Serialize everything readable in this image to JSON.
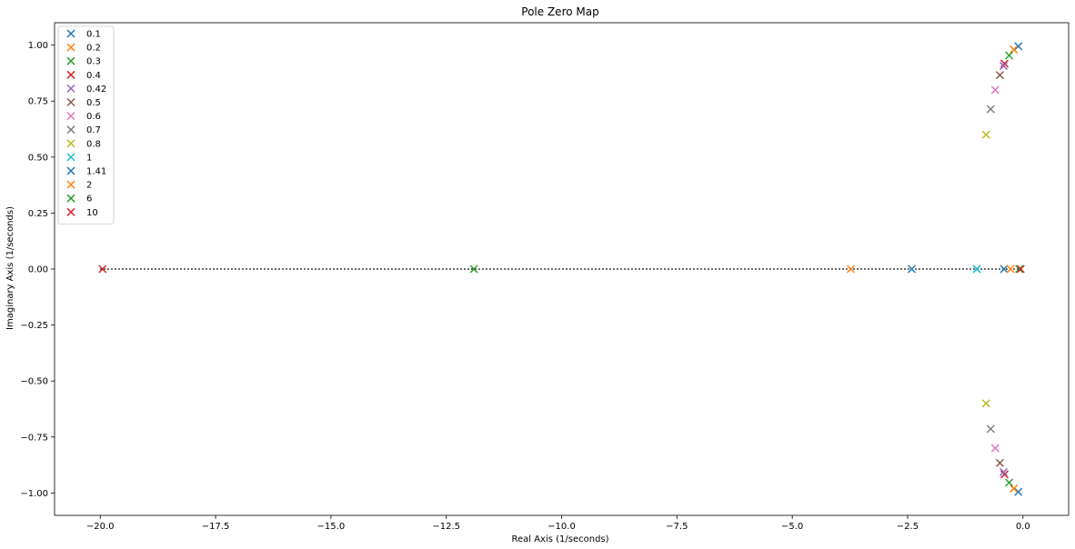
{
  "chart_data": {
    "type": "scatter",
    "title": "Pole Zero Map",
    "xlabel": "Real Axis (1/seconds)",
    "ylabel": "Imaginary Axis (1/seconds)",
    "xlim": [
      -20.99,
      0.99
    ],
    "ylim": [
      -1.1,
      1.1
    ],
    "x_ticks": [
      -20.0,
      -17.5,
      -15.0,
      -12.5,
      -10.0,
      -7.5,
      -5.0,
      -2.5,
      0.0
    ],
    "x_tick_labels": [
      "−20.0",
      "−17.5",
      "−15.0",
      "−12.5",
      "−10.0",
      "−7.5",
      "−5.0",
      "−2.5",
      "0.0"
    ],
    "y_ticks": [
      1.0,
      0.75,
      0.5,
      0.25,
      0.0,
      -0.25,
      -0.5,
      -0.75,
      -1.0
    ],
    "y_tick_labels": [
      "1.00",
      "0.75",
      "0.50",
      "0.25",
      "0.00",
      "−0.25",
      "−0.50",
      "−0.75",
      "−1.00"
    ],
    "grid": false,
    "legend_position": "top-left",
    "marker": "x",
    "reference_line": {
      "y": 0,
      "x_range": [
        -20.0,
        0.0
      ],
      "style": "dotted",
      "color": "#000000"
    },
    "series": [
      {
        "name": "0.1",
        "color": "#1f77b4",
        "points": [
          [
            -0.1,
            0.995
          ],
          [
            -0.1,
            -0.995
          ]
        ]
      },
      {
        "name": "0.2",
        "color": "#ff7f0e",
        "points": [
          [
            -0.2,
            0.98
          ],
          [
            -0.2,
            -0.98
          ]
        ]
      },
      {
        "name": "0.3",
        "color": "#2ca02c",
        "points": [
          [
            -0.3,
            0.954
          ],
          [
            -0.3,
            -0.954
          ]
        ]
      },
      {
        "name": "0.4",
        "color": "#d62728",
        "points": [
          [
            -0.4,
            0.917
          ],
          [
            -0.4,
            -0.917
          ]
        ]
      },
      {
        "name": "0.42",
        "color": "#9467bd",
        "points": [
          [
            -0.42,
            0.907
          ],
          [
            -0.42,
            -0.907
          ]
        ]
      },
      {
        "name": "0.5",
        "color": "#8c564b",
        "points": [
          [
            -0.5,
            0.866
          ],
          [
            -0.5,
            -0.866
          ]
        ]
      },
      {
        "name": "0.6",
        "color": "#e377c2",
        "points": [
          [
            -0.6,
            0.8
          ],
          [
            -0.6,
            -0.8
          ]
        ]
      },
      {
        "name": "0.7",
        "color": "#7f7f7f",
        "points": [
          [
            -0.7,
            0.714
          ],
          [
            -0.7,
            -0.714
          ]
        ]
      },
      {
        "name": "0.8",
        "color": "#bcbd22",
        "points": [
          [
            -0.8,
            0.6
          ],
          [
            -0.8,
            -0.6
          ]
        ]
      },
      {
        "name": "1",
        "color": "#17becf",
        "points": [
          [
            -1.0,
            0.0
          ],
          [
            -1.0,
            0.0
          ]
        ]
      },
      {
        "name": "1.41",
        "color": "#1f77b4",
        "points": [
          [
            -2.41,
            0.0
          ],
          [
            -0.41,
            0.0
          ]
        ]
      },
      {
        "name": "2",
        "color": "#ff7f0e",
        "points": [
          [
            -3.73,
            0.0
          ],
          [
            -0.27,
            0.0
          ]
        ]
      },
      {
        "name": "6",
        "color": "#2ca02c",
        "points": [
          [
            -11.9,
            0.0
          ],
          [
            -0.08,
            0.0
          ]
        ]
      },
      {
        "name": "10",
        "color": "#d62728",
        "points": [
          [
            -19.95,
            0.0
          ],
          [
            -0.05,
            0.0
          ]
        ]
      }
    ]
  }
}
